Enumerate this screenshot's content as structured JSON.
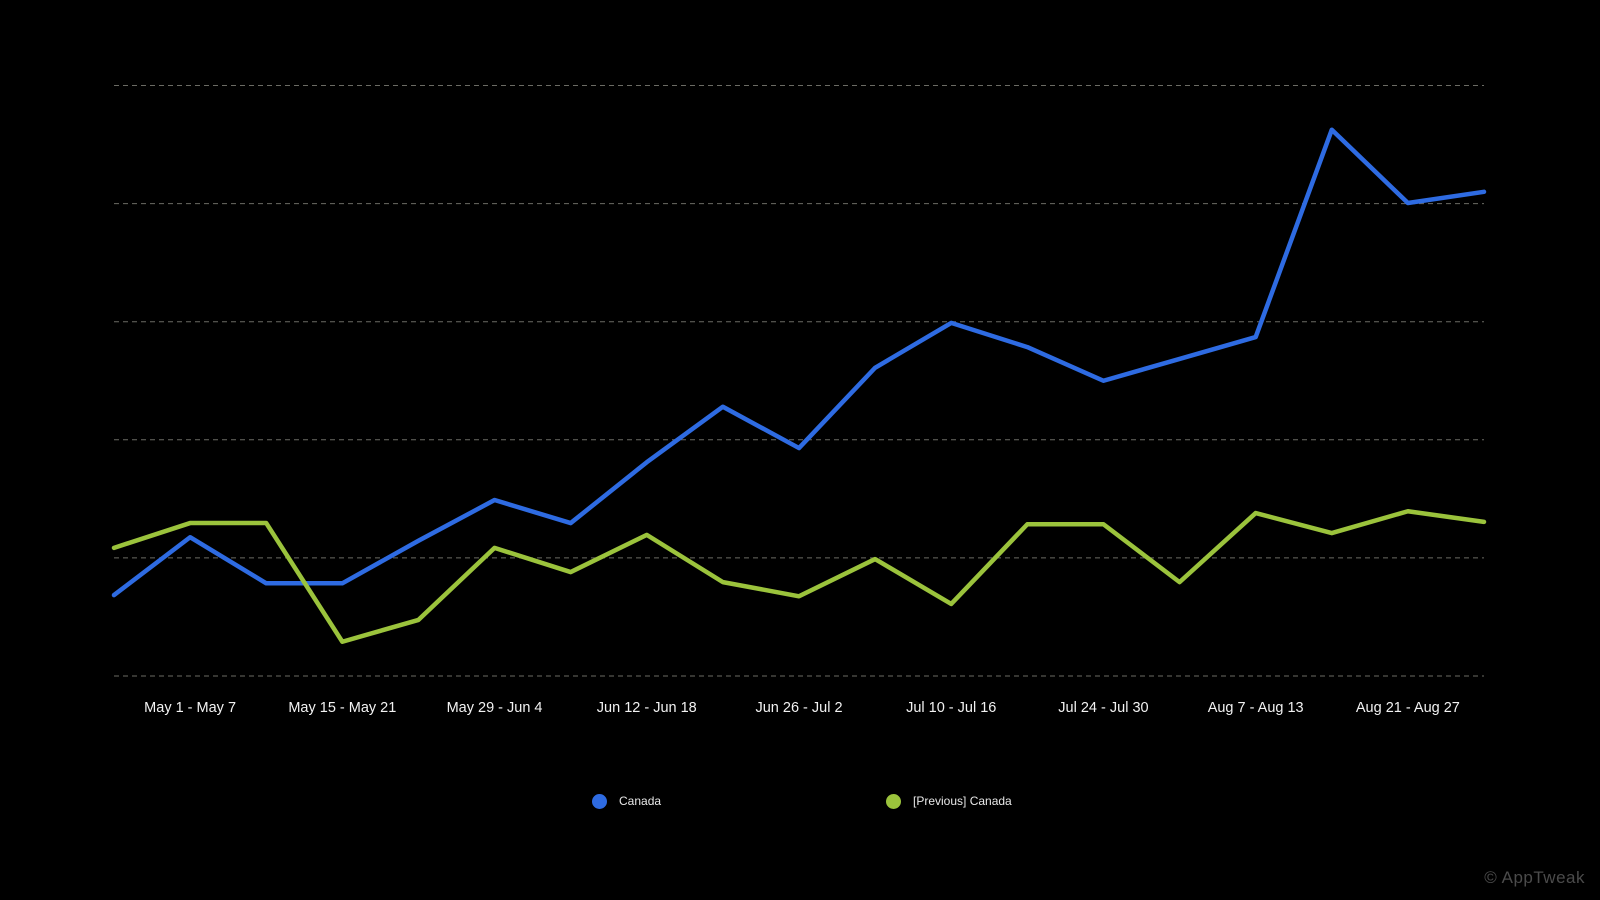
{
  "chart_data": {
    "type": "line",
    "title": "",
    "xlabel": "",
    "ylabel": "",
    "ylim": [
      0,
      100
    ],
    "y_gridlines": [
      0,
      20,
      40,
      60,
      80,
      100
    ],
    "grid": "horizontal-dashed",
    "y_axis_labels_visible": false,
    "legend_position": "bottom",
    "x_ticks": [
      {
        "index": 1,
        "label": "May 1 - May 7"
      },
      {
        "index": 3,
        "label": "May 15 - May 21"
      },
      {
        "index": 5,
        "label": "May 29 - Jun 4"
      },
      {
        "index": 7,
        "label": "Jun 12 - Jun 18"
      },
      {
        "index": 9,
        "label": "Jun 26 - Jul 2"
      },
      {
        "index": 11,
        "label": "Jul 10 - Jul 16"
      },
      {
        "index": 13,
        "label": "Jul 24 - Jul 30"
      },
      {
        "index": 15,
        "label": "Aug 7 - Aug 13"
      },
      {
        "index": 17,
        "label": "Aug 21 - Aug 27"
      }
    ],
    "series": [
      {
        "name": "Canada",
        "color": "#2e6be2",
        "values": [
          13.7,
          23.5,
          15.7,
          15.7,
          22.9,
          29.8,
          25.9,
          36.2,
          45.6,
          38.6,
          52.2,
          59.8,
          55.7,
          50.0,
          53.7,
          57.4,
          92.5,
          80.1,
          82.0
        ]
      },
      {
        "name": "[Previous] Canada",
        "color": "#9bc33c",
        "values": [
          21.7,
          25.9,
          25.9,
          5.8,
          9.5,
          21.7,
          17.6,
          23.9,
          15.9,
          13.5,
          19.8,
          12.2,
          25.7,
          25.7,
          15.9,
          27.6,
          24.2,
          27.9,
          26.1
        ]
      }
    ]
  },
  "legend": {
    "items": [
      {
        "label": "Canada",
        "color": "#2e6be2"
      },
      {
        "label": "[Previous] Canada",
        "color": "#9bc33c"
      }
    ]
  },
  "watermark": {
    "text": "© AppTweak"
  }
}
